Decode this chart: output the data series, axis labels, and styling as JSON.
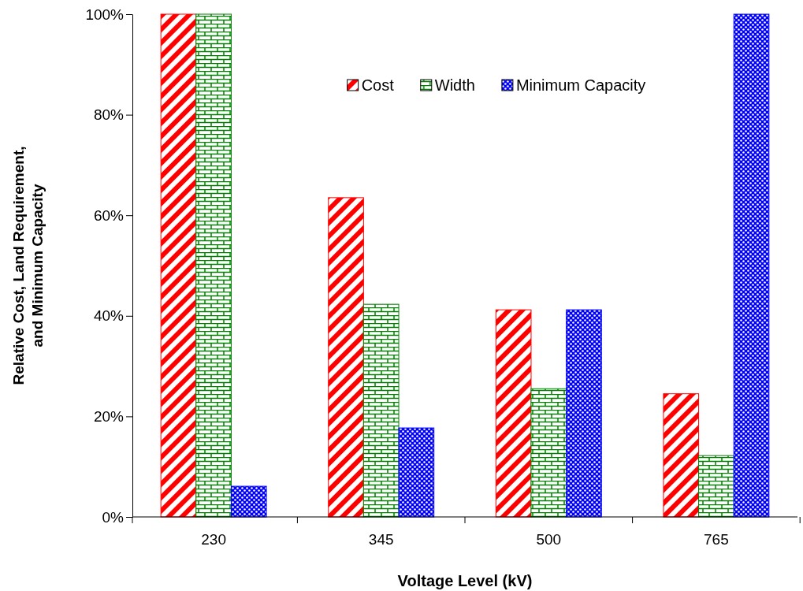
{
  "chart_data": {
    "type": "bar",
    "xlabel": "Voltage Level (kV)",
    "ylabel": "Relative Cost, Land Requirement, and Minimum Capacity",
    "categories": [
      "230",
      "345",
      "500",
      "765"
    ],
    "series": [
      {
        "name": "Cost",
        "color": "#ff0000",
        "values": [
          100,
          63.5,
          41.2,
          24.5
        ]
      },
      {
        "name": "Width",
        "color": "#008000",
        "values": [
          100,
          42.3,
          25.5,
          12.2
        ]
      },
      {
        "name": "Minimum Capacity",
        "color": "#0000ff",
        "values": [
          6.1,
          17.7,
          41.2,
          100
        ]
      }
    ],
    "ylim": [
      0,
      100
    ],
    "yticks": [
      {
        "value": 0,
        "label": "0%"
      },
      {
        "value": 20,
        "label": "20%"
      },
      {
        "value": 40,
        "label": "40%"
      },
      {
        "value": 60,
        "label": "60%"
      },
      {
        "value": 80,
        "label": "80%"
      },
      {
        "value": 100,
        "label": "100%"
      }
    ],
    "legend": "top",
    "grid": false
  }
}
